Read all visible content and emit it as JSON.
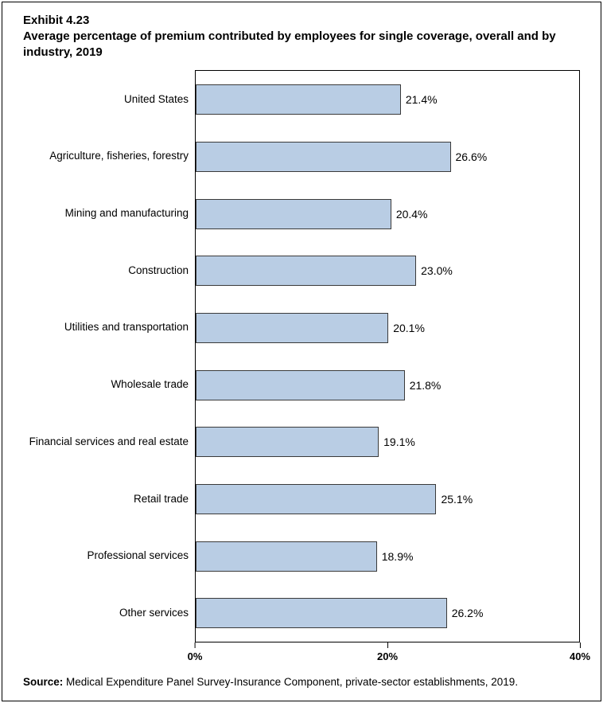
{
  "header": {
    "exhibit": "Exhibit 4.23",
    "title": "Average percentage of premium contributed by employees for single coverage, overall and by industry, 2019"
  },
  "source": {
    "label": "Source:",
    "text": " Medical Expenditure Panel Survey-Insurance Component, private-sector establishments, 2019."
  },
  "chart_data": {
    "type": "bar",
    "orientation": "horizontal",
    "title": "Average percentage of premium contributed by employees for single coverage, overall and by industry, 2019",
    "categories": [
      "United States",
      "Agriculture, fisheries, forestry",
      "Mining and manufacturing",
      "Construction",
      "Utilities and transportation",
      "Wholesale trade",
      "Financial services and real estate",
      "Retail trade",
      "Professional services",
      "Other services"
    ],
    "values": [
      21.4,
      26.6,
      20.4,
      23.0,
      20.1,
      21.8,
      19.1,
      25.1,
      18.9,
      26.2
    ],
    "value_labels": [
      "21.4%",
      "26.6%",
      "20.4%",
      "23.0%",
      "20.1%",
      "21.8%",
      "19.1%",
      "25.1%",
      "18.9%",
      "26.2%"
    ],
    "xlim": [
      0,
      40
    ],
    "x_ticks": [
      "0%",
      "20%",
      "40%"
    ],
    "grid": false,
    "legend": "none",
    "bar_color": "#b9cde4",
    "bar_border_color": "#3a3a3a"
  }
}
